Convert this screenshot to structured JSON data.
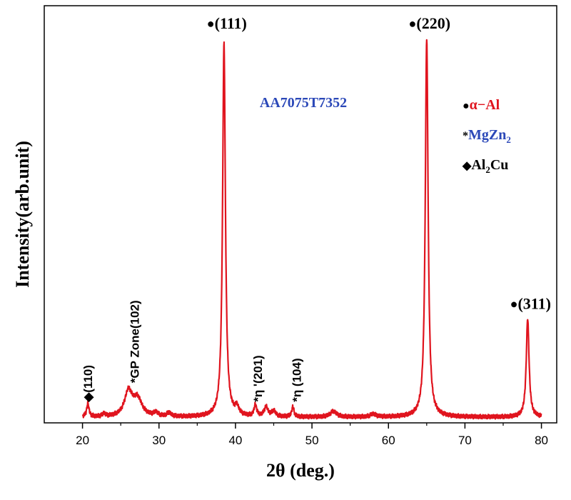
{
  "chart_data": {
    "type": "line",
    "xlabel": "2θ (deg.)",
    "ylabel": "Intensity(arb.unit)",
    "xlim": [
      15,
      82
    ],
    "ylim": [
      0,
      110
    ],
    "xticks": [
      20,
      30,
      40,
      50,
      60,
      70,
      80
    ],
    "y_tick_labels_shown": false,
    "sample_label": "AA7075T7352",
    "colors": {
      "line": "#e0141e",
      "sample_label": "#2b48b8",
      "alpha_al": "#e0141e",
      "mgzn2": "#2b48b8",
      "al2cu": "#000000"
    },
    "legend": {
      "placement": "right",
      "entries": [
        {
          "marker": "●",
          "text": "α−Al",
          "color": "#e0141e"
        },
        {
          "marker": "*",
          "text": "MgZn",
          "subscript": "2",
          "color": "#2b48b8"
        },
        {
          "marker": "◆",
          "text": "Al",
          "subscript": "2",
          "text_after": "Cu",
          "color": "#000000"
        }
      ]
    },
    "series": [
      {
        "baseline": 1.5,
        "peaks": [
          {
            "x": 20.7,
            "height": 3.5,
            "width": 0.18
          },
          {
            "x": 22.8,
            "height": 0.8,
            "width": 0.2
          },
          {
            "x": 26.0,
            "height": 6.5,
            "width": 0.6
          },
          {
            "x": 27.2,
            "height": 4.5,
            "width": 0.7
          },
          {
            "x": 29.6,
            "height": 1.0,
            "width": 0.3
          },
          {
            "x": 31.3,
            "height": 1.0,
            "width": 0.3
          },
          {
            "x": 38.5,
            "height": 98.5,
            "width": 0.22
          },
          {
            "x": 40.2,
            "height": 2.0,
            "width": 0.3
          },
          {
            "x": 42.6,
            "height": 3.0,
            "width": 0.2
          },
          {
            "x": 44.0,
            "height": 2.5,
            "width": 0.3
          },
          {
            "x": 45.0,
            "height": 1.5,
            "width": 0.3
          },
          {
            "x": 47.5,
            "height": 2.6,
            "width": 0.18
          },
          {
            "x": 52.8,
            "height": 1.5,
            "width": 0.5
          },
          {
            "x": 58.0,
            "height": 0.8,
            "width": 0.4
          },
          {
            "x": 65.0,
            "height": 100,
            "width": 0.22
          },
          {
            "x": 78.2,
            "height": 26,
            "width": 0.22
          }
        ]
      }
    ],
    "annotations": [
      {
        "marker": "◆",
        "text": "(110)",
        "x": 20.7,
        "y": 5.5,
        "orientation": "vertical"
      },
      {
        "marker": "*",
        "text": "GP Zone(102)",
        "x": 26.8,
        "y": 10.5,
        "orientation": "vertical"
      },
      {
        "marker": "●",
        "text": "(111)",
        "x": 38.5,
        "y": 104,
        "orientation": "horizontal"
      },
      {
        "marker": "*",
        "text": "η '(201)",
        "x": 42.9,
        "y": 5.5,
        "orientation": "vertical"
      },
      {
        "marker": "*",
        "text": "η (104)",
        "x": 48.0,
        "y": 5.5,
        "orientation": "vertical"
      },
      {
        "marker": "●",
        "text": "(220)",
        "x": 65.0,
        "y": 104,
        "orientation": "horizontal"
      },
      {
        "marker": "●",
        "text": "(311)",
        "x": 78.2,
        "y": 30,
        "orientation": "horizontal"
      }
    ]
  }
}
